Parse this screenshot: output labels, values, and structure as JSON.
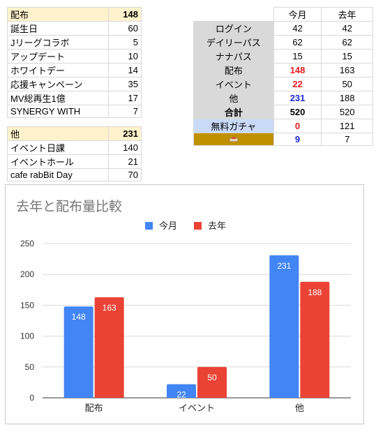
{
  "table_haifu": {
    "header": {
      "label": "配布",
      "value": "148"
    },
    "rows": [
      {
        "label": "誕生日",
        "value": "60"
      },
      {
        "label": "Jリーグコラボ",
        "value": "5"
      },
      {
        "label": "アップデート",
        "value": "10"
      },
      {
        "label": "ホワイトデー",
        "value": "14"
      },
      {
        "label": "応援キャンペーン",
        "value": "35"
      },
      {
        "label": "MV総再生1億",
        "value": "17"
      },
      {
        "label": "SYNERGY WITH",
        "value": "7"
      }
    ]
  },
  "table_other": {
    "header": {
      "label": "他",
      "value": "231"
    },
    "rows": [
      {
        "label": "イベント日課",
        "value": "140"
      },
      {
        "label": "イベントホール",
        "value": "21"
      },
      {
        "label": "cafe rabBit Day",
        "value": "70"
      }
    ]
  },
  "table_compare": {
    "col_this": "今月",
    "col_last": "去年",
    "rows": [
      {
        "label": "ログイン",
        "this": "42",
        "last": "42"
      },
      {
        "label": "デイリーパス",
        "this": "62",
        "last": "62"
      },
      {
        "label": "ナナパス",
        "this": "15",
        "last": "15"
      },
      {
        "label": "配布",
        "this": "148",
        "last": "163"
      },
      {
        "label": "イベント",
        "this": "22",
        "last": "50"
      },
      {
        "label": "他",
        "this": "231",
        "last": "188"
      },
      {
        "label": "合計",
        "this": "520",
        "last": "520"
      },
      {
        "label": "無料ガチャ",
        "this": "0",
        "last": "121"
      },
      {
        "label": "",
        "this": "9",
        "last": "7"
      }
    ]
  },
  "colors": {
    "this_month": "#4285f4",
    "last_year": "#ea4335",
    "gold": "#bf9000"
  },
  "chart_data": {
    "type": "bar",
    "title": "去年と配布量比較",
    "categories": [
      "配布",
      "イベント",
      "他"
    ],
    "series": [
      {
        "name": "今月",
        "values": [
          148,
          22,
          231
        ]
      },
      {
        "name": "去年",
        "values": [
          163,
          50,
          188
        ]
      }
    ],
    "ylim": [
      0,
      250
    ],
    "yticks": [
      0,
      50,
      100,
      150,
      200,
      250
    ],
    "grid": true,
    "legend": "top"
  }
}
